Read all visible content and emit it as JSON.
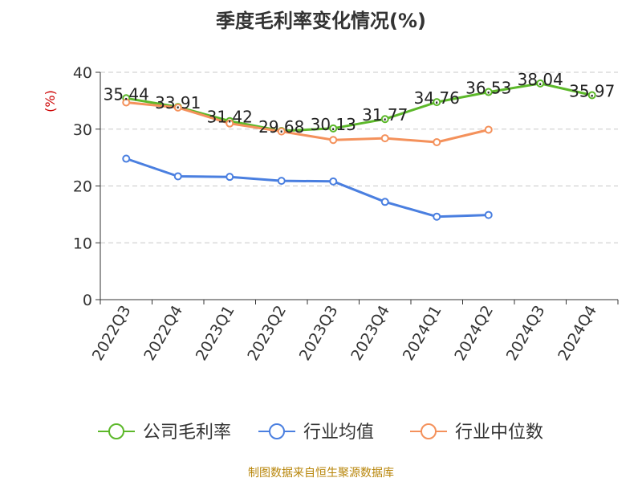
{
  "chart_data": {
    "type": "line",
    "title": "季度毛利率变化情况(%)",
    "ylabel": "(%)",
    "xlabel": "",
    "ylim": [
      0,
      40
    ],
    "yticks": [
      0,
      10,
      20,
      30,
      40
    ],
    "grid": true,
    "legend_position": "bottom",
    "categories": [
      "2022Q3",
      "2022Q4",
      "2023Q1",
      "2023Q2",
      "2023Q3",
      "2023Q4",
      "2024Q1",
      "2024Q2",
      "2024Q3",
      "2024Q4"
    ],
    "series": [
      {
        "name": "公司毛利率",
        "color": "#5cb82a",
        "values": [
          35.44,
          33.91,
          31.42,
          29.68,
          30.13,
          31.77,
          34.76,
          36.53,
          38.04,
          35.97
        ],
        "labels": [
          "35.44",
          "33.91",
          "31.42",
          "29.68",
          "30.13",
          "31.77",
          "34.76",
          "36.53",
          "38.04",
          "35.97"
        ]
      },
      {
        "name": "行业均值",
        "color": "#4a7fe0",
        "values": [
          24.8,
          21.7,
          21.6,
          20.9,
          20.8,
          17.2,
          14.6,
          14.9,
          null,
          null
        ]
      },
      {
        "name": "行业中位数",
        "color": "#f4915b",
        "values": [
          34.7,
          33.8,
          31.0,
          29.6,
          28.1,
          28.4,
          27.7,
          29.9,
          null,
          null
        ]
      }
    ]
  },
  "source_text": "制图数据来自恒生聚源数据库"
}
